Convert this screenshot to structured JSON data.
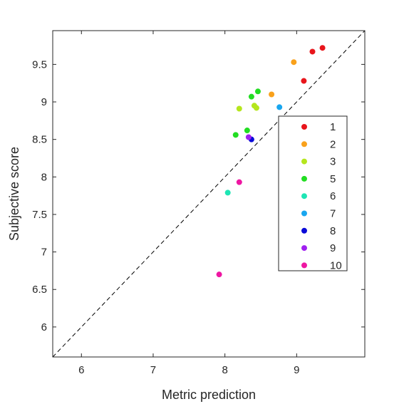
{
  "chart_data": {
    "type": "scatter",
    "title": "",
    "xlabel": "Metric prediction",
    "ylabel": "Subjective score",
    "xlim": [
      5.6,
      9.95
    ],
    "ylim": [
      5.6,
      9.95
    ],
    "xticks": [
      6,
      7,
      8,
      9
    ],
    "yticks": [
      6,
      6.5,
      7,
      7.5,
      8,
      8.5,
      9,
      9.5
    ],
    "xtick_labels": [
      "6",
      "7",
      "8",
      "9"
    ],
    "ytick_labels": [
      "6",
      "6.5",
      "7",
      "7.5",
      "8",
      "8.5",
      "9",
      "9.5"
    ],
    "grid": false,
    "reference_line": "identity (y = x), dashed",
    "legend_position": "right, inside axes",
    "series": [
      {
        "name": "1",
        "color": "#e8151b",
        "points": [
          [
            9.1,
            9.28
          ],
          [
            9.22,
            9.67
          ],
          [
            9.36,
            9.72
          ]
        ]
      },
      {
        "name": "2",
        "color": "#f9a11b",
        "points": [
          [
            8.96,
            9.53
          ],
          [
            8.65,
            9.1
          ]
        ]
      },
      {
        "name": "3",
        "color": "#b5e61d",
        "points": [
          [
            8.2,
            8.91
          ],
          [
            8.41,
            8.95
          ],
          [
            8.44,
            8.92
          ]
        ]
      },
      {
        "name": "5",
        "color": "#22dd22",
        "points": [
          [
            8.37,
            9.07
          ],
          [
            8.46,
            9.14
          ],
          [
            8.31,
            8.62
          ],
          [
            8.15,
            8.56
          ]
        ]
      },
      {
        "name": "6",
        "color": "#1de5b4",
        "points": [
          [
            8.04,
            7.79
          ]
        ]
      },
      {
        "name": "7",
        "color": "#18a6ef",
        "points": [
          [
            8.76,
            8.93
          ]
        ]
      },
      {
        "name": "8",
        "color": "#0a0ad8",
        "points": [
          [
            8.37,
            8.5
          ]
        ]
      },
      {
        "name": "9",
        "color": "#a020f0",
        "points": [
          [
            8.33,
            8.53
          ]
        ]
      },
      {
        "name": "10",
        "color": "#ee16a2",
        "points": [
          [
            8.2,
            7.93
          ],
          [
            7.92,
            6.7
          ]
        ]
      }
    ]
  }
}
